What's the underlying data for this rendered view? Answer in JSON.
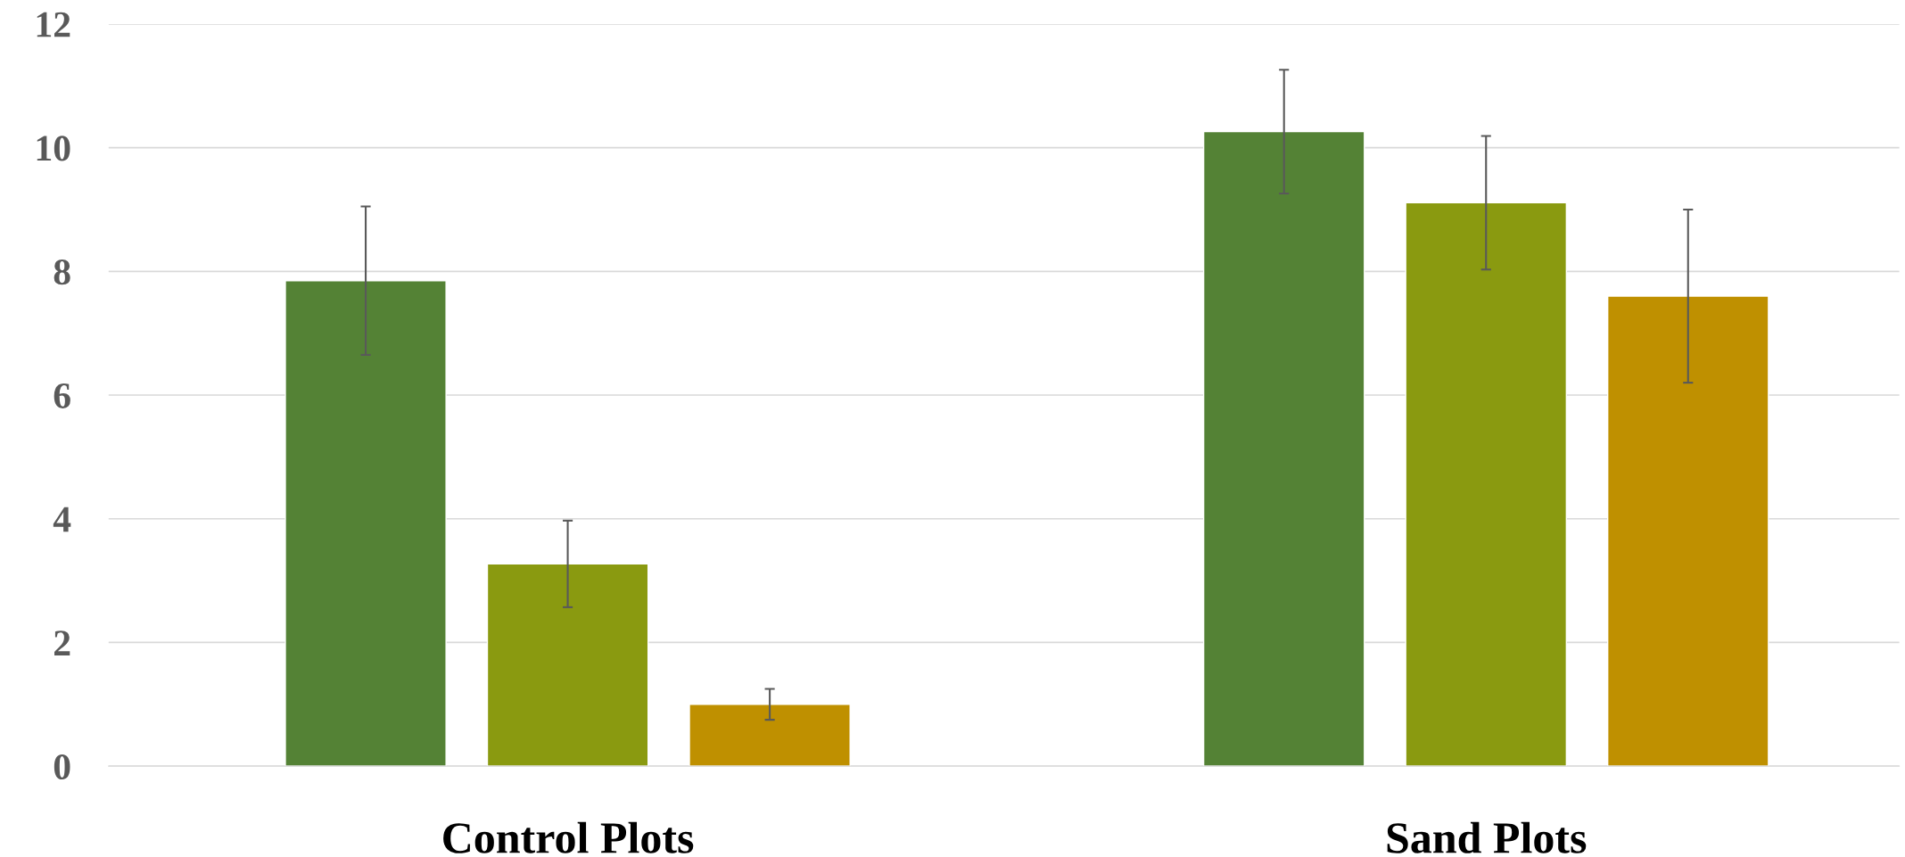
{
  "chart_data": {
    "type": "bar",
    "categories": [
      "Control Plots",
      "Sand Plots"
    ],
    "series": [
      {
        "color": "#548235",
        "values": [
          7.85,
          10.26
        ],
        "errors": [
          1.2,
          1.0
        ]
      },
      {
        "color": "#8a9a10",
        "values": [
          3.27,
          9.11
        ],
        "errors": [
          0.7,
          1.08
        ]
      },
      {
        "color": "#bf9000",
        "values": [
          1.0,
          7.6
        ],
        "errors": [
          0.25,
          1.4
        ]
      }
    ],
    "ylim": [
      0,
      12
    ],
    "yticks": [
      0,
      2,
      4,
      6,
      8,
      10,
      12
    ],
    "grid": "y",
    "legend": false
  }
}
